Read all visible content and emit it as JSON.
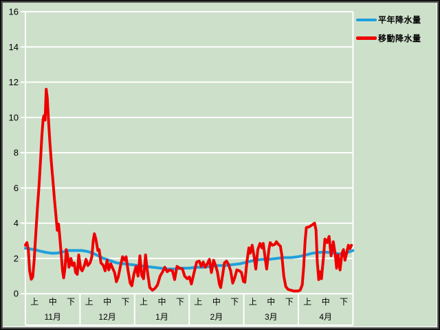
{
  "colors": {
    "background": "#cde0ca",
    "grid": "#ffffff",
    "text": "#000000",
    "normal_line": "#1fa0dc",
    "moving_line": "#ee0000"
  },
  "legend": {
    "items": [
      {
        "label": "平年降水量",
        "color": "#1fa0dc"
      },
      {
        "label": "移動降水量",
        "color": "#ee0000"
      }
    ]
  },
  "chart_data": {
    "type": "line",
    "title": "",
    "xlabel": "",
    "ylabel": "",
    "ylim": [
      0,
      16
    ],
    "yticks": [
      0,
      2,
      4,
      6,
      8,
      10,
      12,
      14,
      16
    ],
    "grid": "horizontal white gridlines every 2 units",
    "legend_position": "outside top-right",
    "x_axis": {
      "months": [
        "11月",
        "12月",
        "1月",
        "2月",
        "3月",
        "4月"
      ],
      "periods": [
        "上",
        "中",
        "下"
      ],
      "days_per_month": 30,
      "total_days": 180
    },
    "series": [
      {
        "name": "平年降水量",
        "color": "#1fa0dc",
        "width": 4,
        "points": [
          [
            0,
            2.58
          ],
          [
            2,
            2.55
          ],
          [
            5,
            2.5
          ],
          [
            8,
            2.42
          ],
          [
            11,
            2.35
          ],
          [
            14,
            2.3
          ],
          [
            17,
            2.3
          ],
          [
            20,
            2.35
          ],
          [
            23,
            2.45
          ],
          [
            27,
            2.45
          ],
          [
            31,
            2.45
          ],
          [
            34,
            2.4
          ],
          [
            37,
            2.3
          ],
          [
            40,
            2.15
          ],
          [
            43,
            2.0
          ],
          [
            46,
            1.9
          ],
          [
            50,
            1.75
          ],
          [
            54,
            1.7
          ],
          [
            58,
            1.65
          ],
          [
            62,
            1.6
          ],
          [
            66,
            1.55
          ],
          [
            70,
            1.5
          ],
          [
            74,
            1.45
          ],
          [
            78,
            1.4
          ],
          [
            82,
            1.4
          ],
          [
            86,
            1.45
          ],
          [
            90,
            1.45
          ],
          [
            94,
            1.5
          ],
          [
            98,
            1.5
          ],
          [
            102,
            1.55
          ],
          [
            106,
            1.6
          ],
          [
            110,
            1.6
          ],
          [
            114,
            1.65
          ],
          [
            118,
            1.7
          ],
          [
            122,
            1.8
          ],
          [
            126,
            1.9
          ],
          [
            130,
            1.95
          ],
          [
            134,
            1.95
          ],
          [
            138,
            2.0
          ],
          [
            142,
            2.05
          ],
          [
            146,
            2.05
          ],
          [
            150,
            2.1
          ],
          [
            154,
            2.2
          ],
          [
            158,
            2.3
          ],
          [
            162,
            2.35
          ],
          [
            166,
            2.35
          ],
          [
            170,
            2.3
          ],
          [
            173,
            2.25
          ],
          [
            176,
            2.3
          ],
          [
            180,
            2.45
          ]
        ]
      },
      {
        "name": "移動降水量",
        "color": "#ee0000",
        "width": 4,
        "points": [
          [
            0,
            2.75
          ],
          [
            0.8,
            2.9
          ],
          [
            1.6,
            2.5
          ],
          [
            2.3,
            1.3
          ],
          [
            3.2,
            0.82
          ],
          [
            4,
            0.95
          ],
          [
            4.8,
            1.9
          ],
          [
            5.7,
            3.4
          ],
          [
            6.6,
            4.9
          ],
          [
            7.5,
            6.2
          ],
          [
            8.3,
            7.6
          ],
          [
            9,
            8.9
          ],
          [
            9.7,
            9.9
          ],
          [
            10.2,
            10.1
          ],
          [
            10.8,
            9.85
          ],
          [
            11.4,
            11.6
          ],
          [
            12,
            11.1
          ],
          [
            12.7,
            9.8
          ],
          [
            13.5,
            8.5
          ],
          [
            14.3,
            7.4
          ],
          [
            15.1,
            6.4
          ],
          [
            15.9,
            5.4
          ],
          [
            16.7,
            4.5
          ],
          [
            17.5,
            3.6
          ],
          [
            18.2,
            3.95
          ],
          [
            18.9,
            3.2
          ],
          [
            19.6,
            2.3
          ],
          [
            20.4,
            1.3
          ],
          [
            21,
            0.9
          ],
          [
            21.8,
            1.5
          ],
          [
            22.4,
            2.5
          ],
          [
            23.1,
            2.25
          ],
          [
            23.9,
            1.5
          ],
          [
            25,
            2.0
          ],
          [
            25.8,
            1.6
          ],
          [
            26.8,
            1.75
          ],
          [
            27.6,
            1.2
          ],
          [
            28.5,
            1.1
          ],
          [
            29.3,
            2.2
          ],
          [
            30.4,
            1.4
          ],
          [
            31.2,
            1.3
          ],
          [
            32.4,
            1.6
          ],
          [
            33.3,
            1.95
          ],
          [
            34.3,
            1.6
          ],
          [
            35.5,
            1.75
          ],
          [
            36.5,
            2.1
          ],
          [
            37.3,
            3.05
          ],
          [
            37.9,
            3.4
          ],
          [
            38.7,
            3.1
          ],
          [
            39.8,
            2.45
          ],
          [
            40.5,
            2.5
          ],
          [
            41.5,
            1.75
          ],
          [
            42.8,
            1.6
          ],
          [
            43.8,
            1.3
          ],
          [
            44.9,
            1.9
          ],
          [
            45.8,
            1.35
          ],
          [
            46.9,
            1.7
          ],
          [
            47.9,
            1.45
          ],
          [
            49,
            1.2
          ],
          [
            50,
            0.68
          ],
          [
            51,
            0.95
          ],
          [
            52.3,
            1.6
          ],
          [
            53.4,
            2.1
          ],
          [
            54.5,
            1.9
          ],
          [
            55.3,
            2.1
          ],
          [
            56.4,
            1.3
          ],
          [
            57.6,
            0.6
          ],
          [
            58.5,
            0.45
          ],
          [
            59.6,
            1.1
          ],
          [
            60.8,
            1.55
          ],
          [
            61.9,
            1.0
          ],
          [
            62.9,
            2.15
          ],
          [
            63.9,
            1.05
          ],
          [
            64.9,
            0.85
          ],
          [
            66,
            2.2
          ],
          [
            67,
            1.3
          ],
          [
            68.3,
            0.35
          ],
          [
            69.8,
            0.2
          ],
          [
            71.2,
            0.3
          ],
          [
            72.6,
            0.5
          ],
          [
            74,
            1.0
          ],
          [
            75.4,
            1.25
          ],
          [
            76.6,
            1.5
          ],
          [
            77.9,
            1.25
          ],
          [
            79.2,
            1.35
          ],
          [
            80.8,
            1.3
          ],
          [
            82,
            0.8
          ],
          [
            83.3,
            1.55
          ],
          [
            84.8,
            1.45
          ],
          [
            86.3,
            1.4
          ],
          [
            87.5,
            1.0
          ],
          [
            88.9,
            0.85
          ],
          [
            90.1,
            0.95
          ],
          [
            91.2,
            0.55
          ],
          [
            92.7,
            1.2
          ],
          [
            94.1,
            1.8
          ],
          [
            95.5,
            1.85
          ],
          [
            96.6,
            1.55
          ],
          [
            97.7,
            1.8
          ],
          [
            98.8,
            1.5
          ],
          [
            100,
            1.7
          ],
          [
            101.1,
            1.95
          ],
          [
            102.2,
            1.2
          ],
          [
            103.4,
            1.9
          ],
          [
            104.5,
            1.6
          ],
          [
            105.5,
            1.25
          ],
          [
            106.6,
            0.55
          ],
          [
            107.3,
            0.35
          ],
          [
            108.3,
            1.0
          ],
          [
            109.4,
            1.75
          ],
          [
            110.5,
            1.85
          ],
          [
            111.6,
            1.65
          ],
          [
            112.8,
            1.3
          ],
          [
            113.9,
            0.6
          ],
          [
            115,
            0.9
          ],
          [
            116.2,
            1.35
          ],
          [
            117.6,
            1.3
          ],
          [
            118.7,
            1.2
          ],
          [
            119.8,
            0.7
          ],
          [
            120.6,
            0.65
          ],
          [
            121.7,
            1.8
          ],
          [
            122.8,
            2.6
          ],
          [
            123.5,
            2.3
          ],
          [
            124.6,
            2.75
          ],
          [
            125.8,
            2.0
          ],
          [
            126.6,
            1.4
          ],
          [
            127.7,
            2.5
          ],
          [
            128.9,
            2.85
          ],
          [
            130,
            2.6
          ],
          [
            130.7,
            2.85
          ],
          [
            131.9,
            1.9
          ],
          [
            132.6,
            1.4
          ],
          [
            133.8,
            2.5
          ],
          [
            134.5,
            2.9
          ],
          [
            135.7,
            2.75
          ],
          [
            137.1,
            2.8
          ],
          [
            137.9,
            2.95
          ],
          [
            139,
            2.8
          ],
          [
            140.1,
            2.7
          ],
          [
            140.9,
            2.2
          ],
          [
            142,
            1.0
          ],
          [
            143.1,
            0.4
          ],
          [
            144.3,
            0.25
          ],
          [
            145.8,
            0.2
          ],
          [
            147.5,
            0.15
          ],
          [
            149.5,
            0.15
          ],
          [
            151,
            0.2
          ],
          [
            152.1,
            0.5
          ],
          [
            152.9,
            1.5
          ],
          [
            153.7,
            3.0
          ],
          [
            154.4,
            3.75
          ],
          [
            156,
            3.8
          ],
          [
            157.5,
            3.9
          ],
          [
            158.9,
            4.0
          ],
          [
            159.7,
            3.6
          ],
          [
            160.4,
            1.8
          ],
          [
            161.2,
            0.8
          ],
          [
            162,
            1.25
          ],
          [
            162.7,
            0.85
          ],
          [
            163.9,
            2.2
          ],
          [
            164.6,
            3.1
          ],
          [
            165.8,
            2.9
          ],
          [
            166.9,
            3.25
          ],
          [
            168,
            2.15
          ],
          [
            169.2,
            2.95
          ],
          [
            170.3,
            2.2
          ],
          [
            171,
            1.45
          ],
          [
            171.8,
            2.2
          ],
          [
            172.9,
            1.35
          ],
          [
            174,
            2.3
          ],
          [
            174.8,
            2.5
          ],
          [
            175.6,
            1.9
          ],
          [
            176.7,
            2.4
          ],
          [
            177.5,
            2.75
          ],
          [
            178.3,
            2.55
          ],
          [
            179.2,
            2.75
          ]
        ]
      }
    ]
  }
}
